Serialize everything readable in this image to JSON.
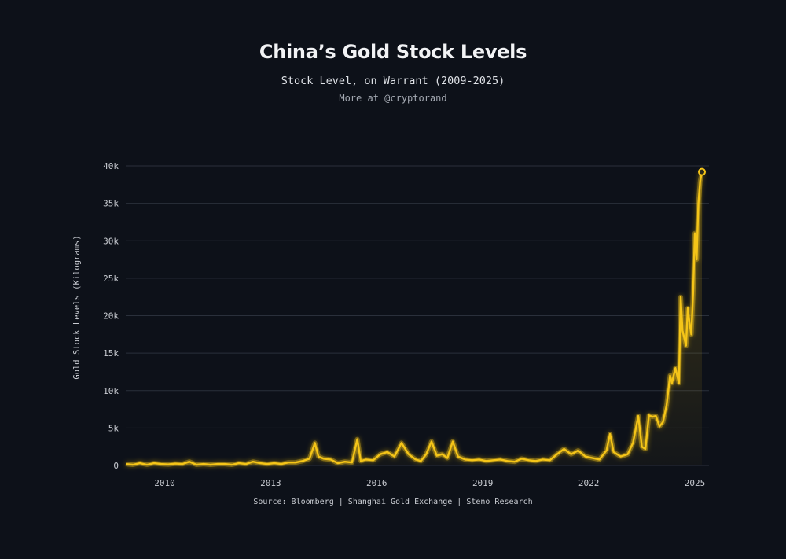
{
  "chart_data": {
    "type": "area",
    "title": "China’s Gold Stock Levels",
    "subtitle": "Stock Level, on Warrant (2009-2025)",
    "credit": "More at @cryptorand",
    "source": "Source: Bloomberg | Shanghai Gold Exchange | Steno Research",
    "xlabel": "",
    "ylabel": "Gold Stock Levels (Kilograms)",
    "xlim": [
      2008.9,
      2025.4
    ],
    "ylim": [
      0,
      40000
    ],
    "x_ticks": [
      2010,
      2013,
      2016,
      2019,
      2022,
      2025
    ],
    "x_tick_labels": [
      "2010",
      "2013",
      "2016",
      "2019",
      "2022",
      "2025"
    ],
    "y_ticks": [
      0,
      5000,
      10000,
      15000,
      20000,
      25000,
      30000,
      35000,
      40000
    ],
    "y_tick_labels": [
      "0",
      "5k",
      "10k",
      "15k",
      "20k",
      "25k",
      "30k",
      "35k",
      "40k"
    ],
    "grid": true,
    "line_color": "#f5c518",
    "series": [
      {
        "name": "Gold Stock Level",
        "x": [
          2008.9,
          2009.1,
          2009.3,
          2009.5,
          2009.7,
          2009.9,
          2010.1,
          2010.3,
          2010.5,
          2010.7,
          2010.9,
          2011.1,
          2011.3,
          2011.5,
          2011.7,
          2011.9,
          2012.1,
          2012.3,
          2012.5,
          2012.7,
          2012.9,
          2013.1,
          2013.3,
          2013.5,
          2013.7,
          2013.9,
          2014.1,
          2014.25,
          2014.35,
          2014.5,
          2014.7,
          2014.9,
          2015.1,
          2015.3,
          2015.45,
          2015.55,
          2015.7,
          2015.9,
          2016.1,
          2016.3,
          2016.5,
          2016.7,
          2016.9,
          2017.1,
          2017.25,
          2017.4,
          2017.55,
          2017.7,
          2017.85,
          2018.0,
          2018.15,
          2018.3,
          2018.5,
          2018.7,
          2018.9,
          2019.1,
          2019.3,
          2019.5,
          2019.7,
          2019.9,
          2020.1,
          2020.3,
          2020.5,
          2020.7,
          2020.9,
          2021.1,
          2021.3,
          2021.5,
          2021.7,
          2021.9,
          2022.1,
          2022.3,
          2022.5,
          2022.6,
          2022.7,
          2022.9,
          2023.1,
          2023.25,
          2023.4,
          2023.5,
          2023.6,
          2023.7,
          2023.8,
          2023.9,
          2024.0,
          2024.1,
          2024.2,
          2024.3,
          2024.35,
          2024.45,
          2024.55,
          2024.6,
          2024.65,
          2024.75,
          2024.8,
          2024.85,
          2024.9,
          2024.95,
          2025.0,
          2025.05,
          2025.1,
          2025.15,
          2025.2
        ],
        "values": [
          200,
          100,
          300,
          100,
          300,
          200,
          150,
          250,
          200,
          500,
          100,
          200,
          100,
          200,
          200,
          100,
          300,
          200,
          500,
          300,
          200,
          300,
          200,
          400,
          400,
          600,
          900,
          3000,
          1200,
          900,
          800,
          300,
          500,
          400,
          3500,
          600,
          800,
          700,
          1500,
          1800,
          1200,
          3000,
          1500,
          800,
          600,
          1500,
          3200,
          1300,
          1500,
          1000,
          3200,
          1200,
          800,
          700,
          800,
          600,
          700,
          800,
          600,
          500,
          900,
          700,
          600,
          800,
          700,
          1500,
          2200,
          1500,
          2000,
          1200,
          1000,
          800,
          2000,
          4200,
          1800,
          1200,
          1500,
          3000,
          6600,
          2500,
          2200,
          6700,
          6500,
          6600,
          5200,
          5800,
          8000,
          12000,
          11000,
          13000,
          11000,
          22500,
          18000,
          16000,
          21000,
          19000,
          17500,
          23000,
          31000,
          27500,
          35000,
          38000,
          39200
        ]
      }
    ]
  }
}
